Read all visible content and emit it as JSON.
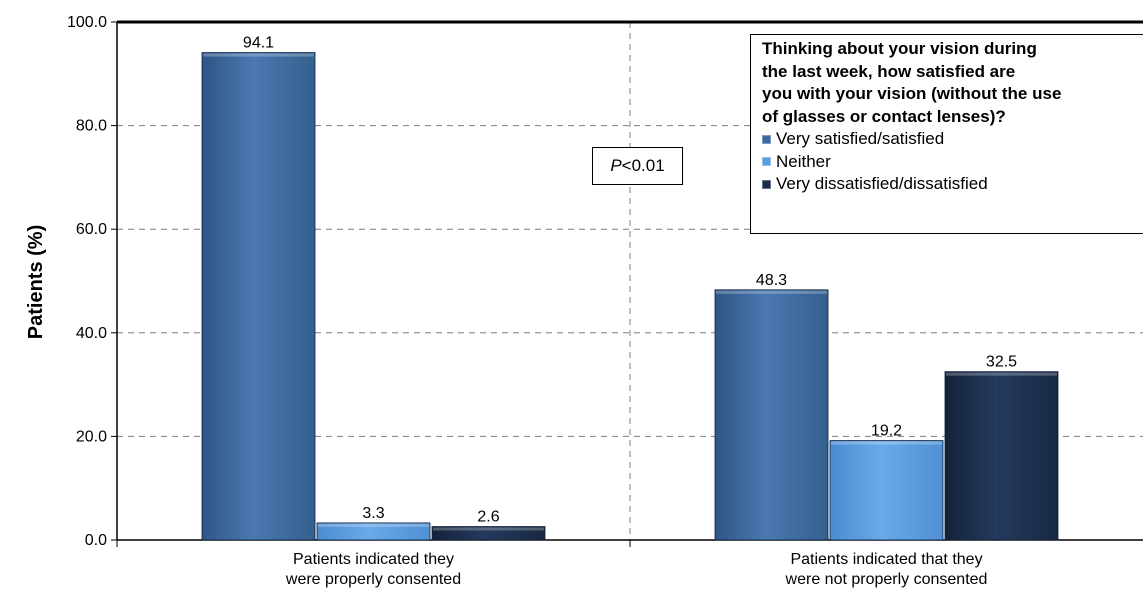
{
  "chart_data": {
    "type": "bar",
    "categories": [
      [
        "Patients indicated they",
        "were properly consented"
      ],
      [
        "Patients indicated that they",
        "were not properly consented"
      ]
    ],
    "series": [
      {
        "name": "Very satisfied/satisfied",
        "values": [
          94.1,
          48.3
        ],
        "labels": [
          "94.1",
          "48.3"
        ],
        "color": "#3d6aa0"
      },
      {
        "name": "Neither",
        "values": [
          3.3,
          19.2
        ],
        "labels": [
          "3.3",
          "19.2"
        ],
        "color": "#5a9de0"
      },
      {
        "name": "Very dissatisfied/dissatisfied",
        "values": [
          2.6,
          32.5
        ],
        "labels": [
          "2.6",
          "32.5"
        ],
        "color": "#1b2c4a"
      }
    ],
    "ylabel": "Patients (%)",
    "ylim": [
      0,
      100
    ],
    "yticks": [
      "0.0",
      "20.0",
      "40.0",
      "60.0",
      "80.0",
      "100.0"
    ],
    "grid": true,
    "legend": {
      "title": "Thinking about your vision during the last week, how satisfied are you with your vision (without the use of glasses or contact lenses)?",
      "title_lines": [
        "Thinking about your vision during",
        "the last week, how satisfied are",
        "you with your vision (without the use",
        "of glasses or contact lenses)?"
      ],
      "position": "top-right"
    },
    "annotation": {
      "italic": "P",
      "rest": "<0.01"
    }
  }
}
